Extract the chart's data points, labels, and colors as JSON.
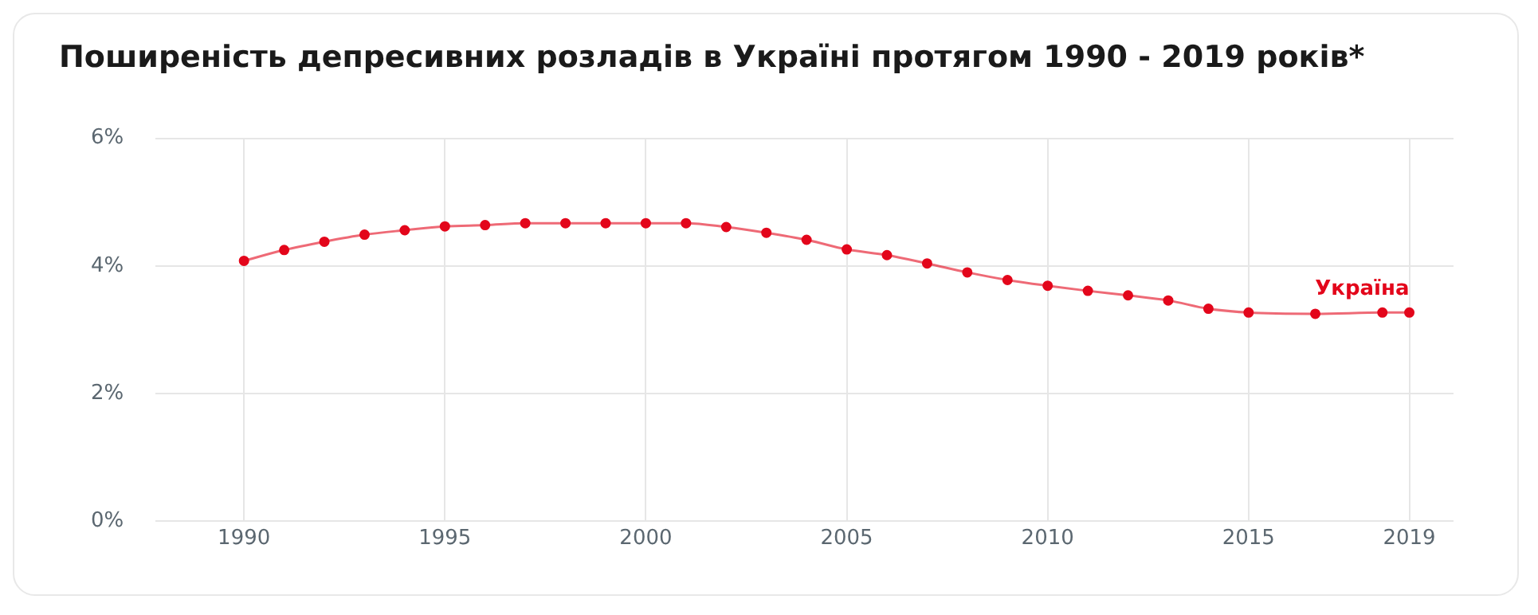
{
  "chart_data": {
    "type": "line",
    "title": "Поширеність депресивних розладів в Україні протягом 1990 - 2019 років*",
    "x": [
      1990,
      1991,
      1992,
      1993,
      1994,
      1995,
      1996,
      1997,
      1998,
      1999,
      2000,
      2001,
      2002,
      2003,
      2004,
      2005,
      2006,
      2007,
      2008,
      2009,
      2010,
      2011,
      2012,
      2013,
      2014,
      2015,
      2016.66,
      2018.33,
      2019
    ],
    "series": [
      {
        "name": "Україна",
        "color": "#e3061b",
        "values": [
          4.08,
          4.25,
          4.38,
          4.49,
          4.56,
          4.62,
          4.64,
          4.67,
          4.67,
          4.67,
          4.67,
          4.67,
          4.61,
          4.52,
          4.41,
          4.26,
          4.17,
          4.04,
          3.9,
          3.78,
          3.69,
          3.61,
          3.54,
          3.46,
          3.33,
          3.27,
          3.25,
          3.27,
          3.27
        ]
      }
    ],
    "xlim": [
      1987.8,
      2020.1
    ],
    "xticks": [
      1990,
      1995,
      2000,
      2005,
      2010,
      2015,
      2019
    ],
    "ylim": [
      0,
      6
    ],
    "yticks": [
      {
        "value": 0,
        "label": "0%"
      },
      {
        "value": 2,
        "label": "2%"
      },
      {
        "value": 4,
        "label": "4%"
      },
      {
        "value": 6,
        "label": "6%"
      }
    ],
    "grid": true,
    "marker": "circle",
    "line_style": "solid",
    "legend": false
  }
}
